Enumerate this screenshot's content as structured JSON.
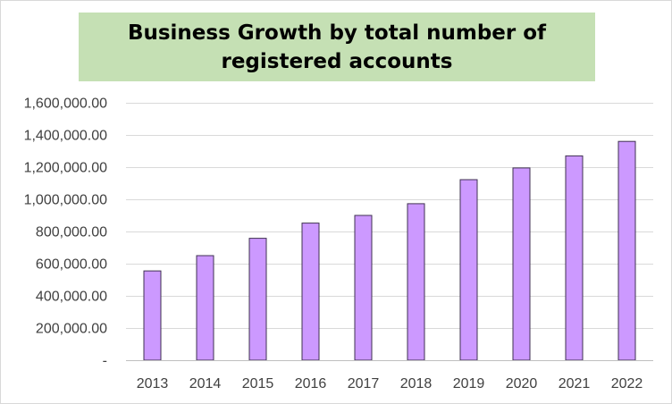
{
  "chart_data": {
    "type": "bar",
    "title": "Business Growth by total number of registered accounts",
    "categories": [
      "2013",
      "2014",
      "2015",
      "2016",
      "2017",
      "2018",
      "2019",
      "2020",
      "2021",
      "2022"
    ],
    "values": [
      555000,
      650000,
      758000,
      852000,
      900000,
      973000,
      1122000,
      1195000,
      1270000,
      1360000
    ],
    "ylim": [
      0,
      1600000
    ],
    "ytick_values": [
      0,
      200000,
      400000,
      600000,
      800000,
      1000000,
      1200000,
      1400000,
      1600000
    ],
    "ytick_labels": [
      "-",
      "200,000.00",
      "400,000.00",
      "600,000.00",
      "800,000.00",
      "1,000,000.00",
      "1,200,000.00",
      "1,400,000.00",
      "1,600,000.00"
    ],
    "grid": true,
    "legend": "none",
    "xlabel": "",
    "ylabel": ""
  },
  "colors": {
    "bar_fill": "#cc99ff",
    "bar_stroke": "#3f3151",
    "title_background": "#c5e0b4"
  }
}
